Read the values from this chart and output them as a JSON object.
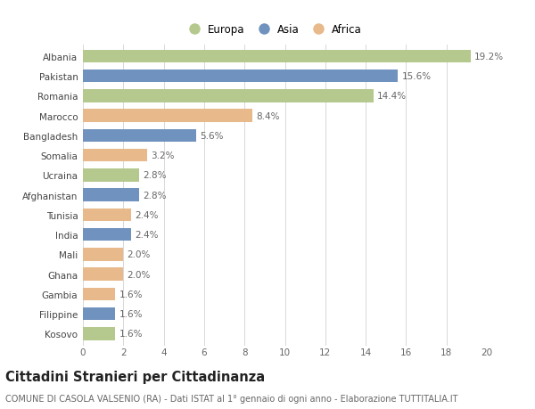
{
  "countries": [
    "Albania",
    "Pakistan",
    "Romania",
    "Marocco",
    "Bangladesh",
    "Somalia",
    "Ucraina",
    "Afghanistan",
    "Tunisia",
    "India",
    "Mali",
    "Ghana",
    "Gambia",
    "Filippine",
    "Kosovo"
  ],
  "values": [
    19.2,
    15.6,
    14.4,
    8.4,
    5.6,
    3.2,
    2.8,
    2.8,
    2.4,
    2.4,
    2.0,
    2.0,
    1.6,
    1.6,
    1.6
  ],
  "continents": [
    "Europa",
    "Asia",
    "Europa",
    "Africa",
    "Asia",
    "Africa",
    "Europa",
    "Asia",
    "Africa",
    "Asia",
    "Africa",
    "Africa",
    "Africa",
    "Asia",
    "Europa"
  ],
  "colors": {
    "Europa": "#b5c98e",
    "Asia": "#7092be",
    "Africa": "#e8b98a"
  },
  "legend_order": [
    "Europa",
    "Asia",
    "Africa"
  ],
  "title": "Cittadini Stranieri per Cittadinanza",
  "subtitle": "COMUNE DI CASOLA VALSENIO (RA) - Dati ISTAT al 1° gennaio di ogni anno - Elaborazione TUTTITALIA.IT",
  "xlim": [
    0,
    20
  ],
  "xticks": [
    0,
    2,
    4,
    6,
    8,
    10,
    12,
    14,
    16,
    18,
    20
  ],
  "background_color": "#ffffff",
  "grid_color": "#d8d8d8",
  "bar_height": 0.65,
  "label_fontsize": 7.5,
  "title_fontsize": 10.5,
  "subtitle_fontsize": 7.0,
  "tick_fontsize": 7.5,
  "legend_fontsize": 8.5
}
